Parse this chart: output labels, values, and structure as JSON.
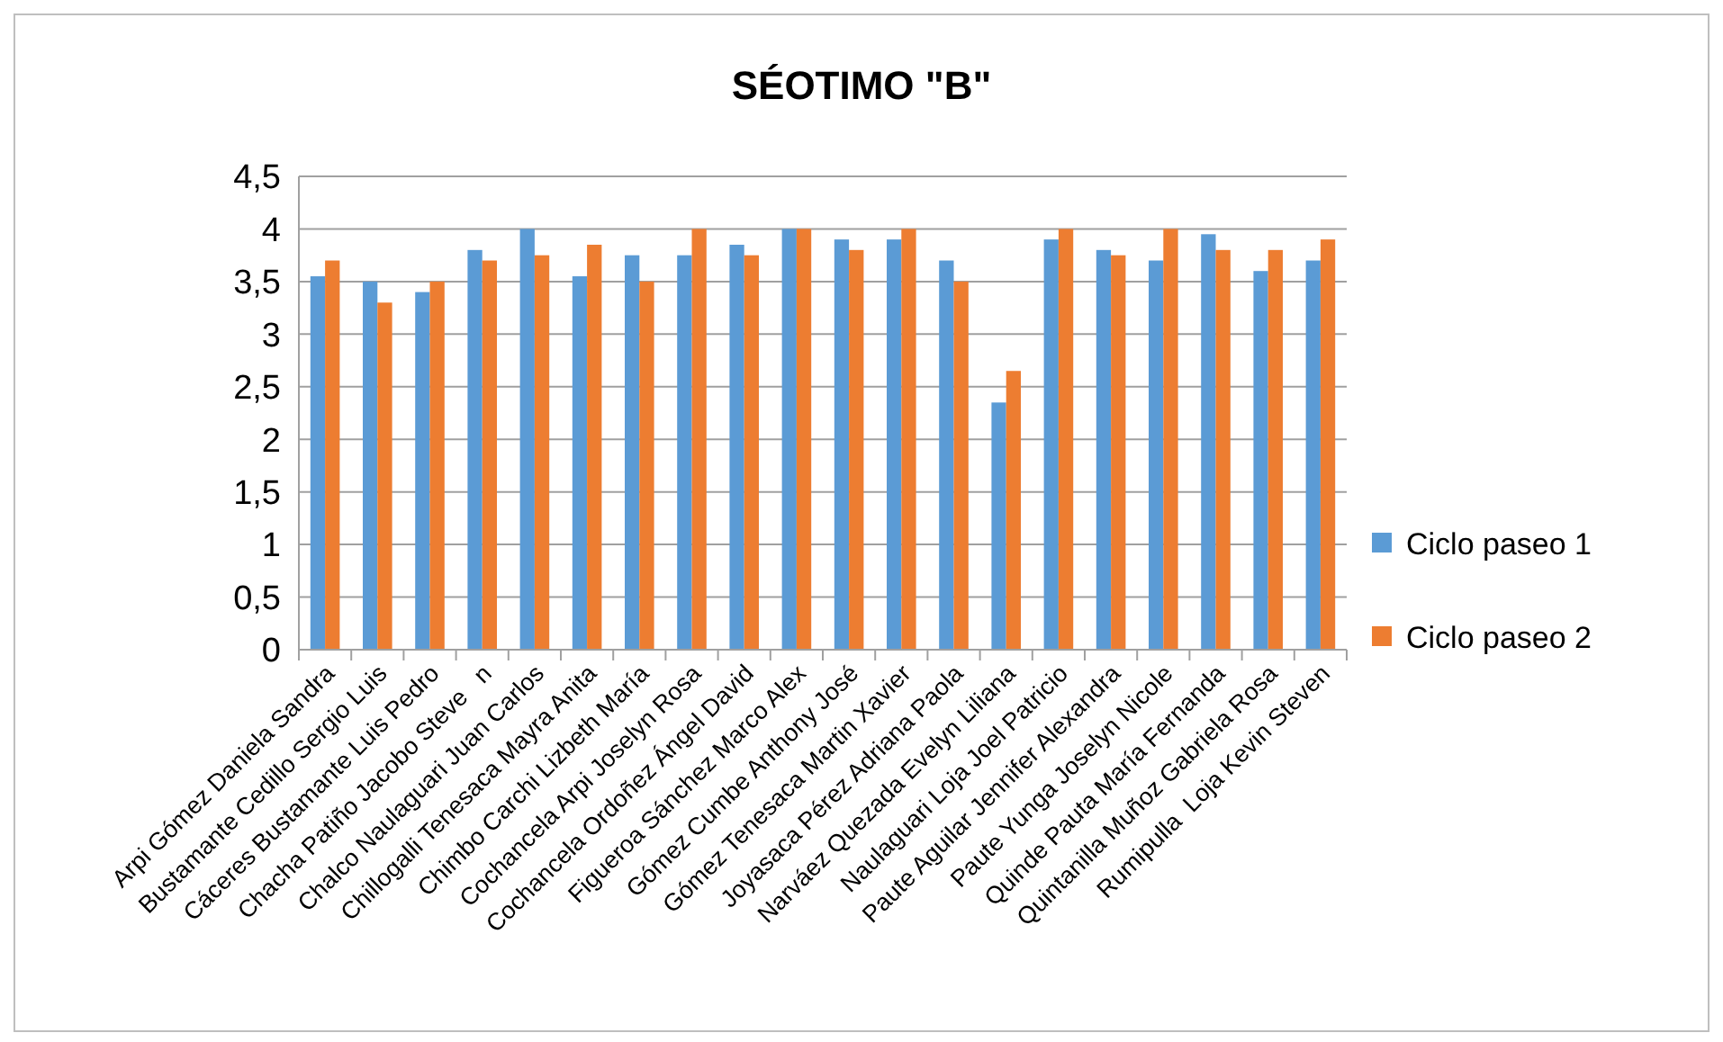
{
  "chart_data": {
    "type": "bar",
    "title": "SÉOTIMO \"B\"",
    "categories": [
      "Arpi Gómez Daniela Sandra",
      "Bustamante Cedillo Sergio Luis",
      "Cáceres Bustamante Luis Pedro",
      "Chacha Patiño Jacobo Steve   n",
      "Chalco Naulaguari Juan Carlos",
      "Chillogalli Tenesaca Mayra Anita",
      "Chimbo Carchi Lizbeth María",
      "Cochancela Arpi Joselyn Rosa",
      "Cochancela Ordoñez Ángel David",
      "Figueroa Sánchez Marco Alex",
      "Gómez Cumbe Anthony José",
      "Gómez Tenesaca Martin Xavier",
      "Joyasaca Pérez Adriana Paola",
      "Narváez Quezada Evelyn Liliana",
      "Naulaguari Loja Joel Patricio",
      "Paute Aguilar Jennifer Alexandra",
      "Paute Yunga Joselyn Nicole",
      "Quinde Pauta María Fernanda",
      "Quintanilla Muñoz Gabriela Rosa",
      "Rumipulla  Loja Kevin Steven"
    ],
    "series": [
      {
        "name": "Ciclo paseo 1",
        "color": "#5b9bd5",
        "values": [
          3.55,
          3.5,
          3.4,
          3.8,
          4,
          3.55,
          3.75,
          3.75,
          3.85,
          4,
          3.9,
          3.9,
          3.7,
          2.35,
          3.9,
          3.8,
          3.7,
          3.95,
          3.6,
          3.7
        ]
      },
      {
        "name": "Ciclo paseo 2",
        "color": "#ed7d31",
        "values": [
          3.7,
          3.3,
          3.5,
          3.7,
          3.75,
          3.85,
          3.5,
          4,
          3.75,
          4,
          3.8,
          4,
          3.5,
          2.65,
          4,
          3.75,
          4,
          3.8,
          3.8,
          3.9
        ]
      }
    ],
    "ylim": [
      0,
      4.5
    ],
    "yticks": [
      0,
      {
        "value": 0.5,
        "label": "0,5"
      },
      1,
      {
        "value": 1.5,
        "label": "1,5"
      },
      2,
      {
        "value": 2.5,
        "label": "2,5"
      },
      3,
      {
        "value": 3.5,
        "label": "3,5"
      },
      4,
      {
        "value": 4.5,
        "label": "4,5"
      }
    ],
    "grid": "y",
    "legend": "right"
  }
}
